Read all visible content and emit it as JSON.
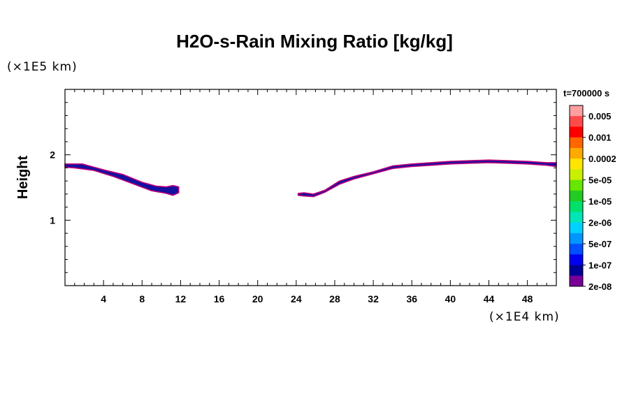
{
  "chart_data": {
    "type": "contour",
    "title": "H2O-s-Rain Mixing Ratio [kg/kg]",
    "ylabel": "Height",
    "y_unit": "(×1E5 km)",
    "x_unit": "(×1E4 km)",
    "time_label": "t=700000 s",
    "xlim": [
      0,
      51
    ],
    "ylim": [
      0,
      3
    ],
    "x_ticks": [
      4,
      8,
      12,
      16,
      20,
      24,
      28,
      32,
      36,
      40,
      44,
      48
    ],
    "x_tick_labels": [
      "4",
      "8",
      "12",
      "16",
      "20",
      "24",
      "28",
      "32",
      "36",
      "40",
      "44",
      "48"
    ],
    "y_ticks": [
      1,
      2
    ],
    "y_tick_labels": [
      "1",
      "2"
    ],
    "legend": {
      "placement": "right",
      "levels": [
        "0.005",
        "0.001",
        "0.0002",
        "5e-05",
        "1e-05",
        "2e-06",
        "5e-07",
        "1e-07",
        "2e-08"
      ],
      "colors": [
        "#ff9f9f",
        "#ff4a4a",
        "#ff0000",
        "#ff6600",
        "#ffaa00",
        "#ffe600",
        "#c8f000",
        "#66e600",
        "#22cc22",
        "#00e06a",
        "#00e6b4",
        "#00d2ff",
        "#0096ff",
        "#0050ff",
        "#0000f0",
        "#000096",
        "#780096"
      ]
    },
    "bands": [
      {
        "name": "",
        "color": "#1410a0",
        "edge_color": "#c0007a",
        "top": [
          [
            0,
            1.86
          ],
          [
            1.8,
            1.86
          ],
          [
            4,
            1.77
          ],
          [
            6,
            1.7
          ],
          [
            8,
            1.58
          ],
          [
            9.5,
            1.52
          ],
          [
            10.5,
            1.51
          ],
          [
            11.2,
            1.53
          ],
          [
            11.8,
            1.51
          ]
        ],
        "bottom": [
          [
            11.8,
            1.42
          ],
          [
            11.2,
            1.38
          ],
          [
            10.5,
            1.41
          ],
          [
            9,
            1.45
          ],
          [
            7,
            1.56
          ],
          [
            5,
            1.67
          ],
          [
            3,
            1.76
          ],
          [
            1,
            1.8
          ],
          [
            0,
            1.81
          ]
        ]
      },
      {
        "name": "",
        "color": "#1410a0",
        "edge_color": "#c0007a",
        "top": [
          [
            24.2,
            1.41
          ],
          [
            24.8,
            1.42
          ],
          [
            25.8,
            1.4
          ],
          [
            27,
            1.46
          ],
          [
            28.5,
            1.6
          ],
          [
            30,
            1.67
          ],
          [
            32,
            1.74
          ],
          [
            34,
            1.83
          ],
          [
            36,
            1.86
          ],
          [
            38,
            1.88
          ],
          [
            40,
            1.9
          ],
          [
            42,
            1.91
          ],
          [
            44,
            1.92
          ],
          [
            46,
            1.91
          ],
          [
            48,
            1.9
          ],
          [
            50,
            1.88
          ],
          [
            51,
            1.88
          ]
        ],
        "bottom": [
          [
            51,
            1.82
          ],
          [
            50,
            1.84
          ],
          [
            48,
            1.86
          ],
          [
            46,
            1.87
          ],
          [
            44,
            1.88
          ],
          [
            42,
            1.87
          ],
          [
            40,
            1.86
          ],
          [
            38,
            1.84
          ],
          [
            36,
            1.82
          ],
          [
            34,
            1.79
          ],
          [
            32,
            1.71
          ],
          [
            30,
            1.63
          ],
          [
            28.5,
            1.55
          ],
          [
            27,
            1.43
          ],
          [
            25.8,
            1.36
          ],
          [
            24.8,
            1.37
          ],
          [
            24.2,
            1.38
          ]
        ]
      }
    ]
  }
}
